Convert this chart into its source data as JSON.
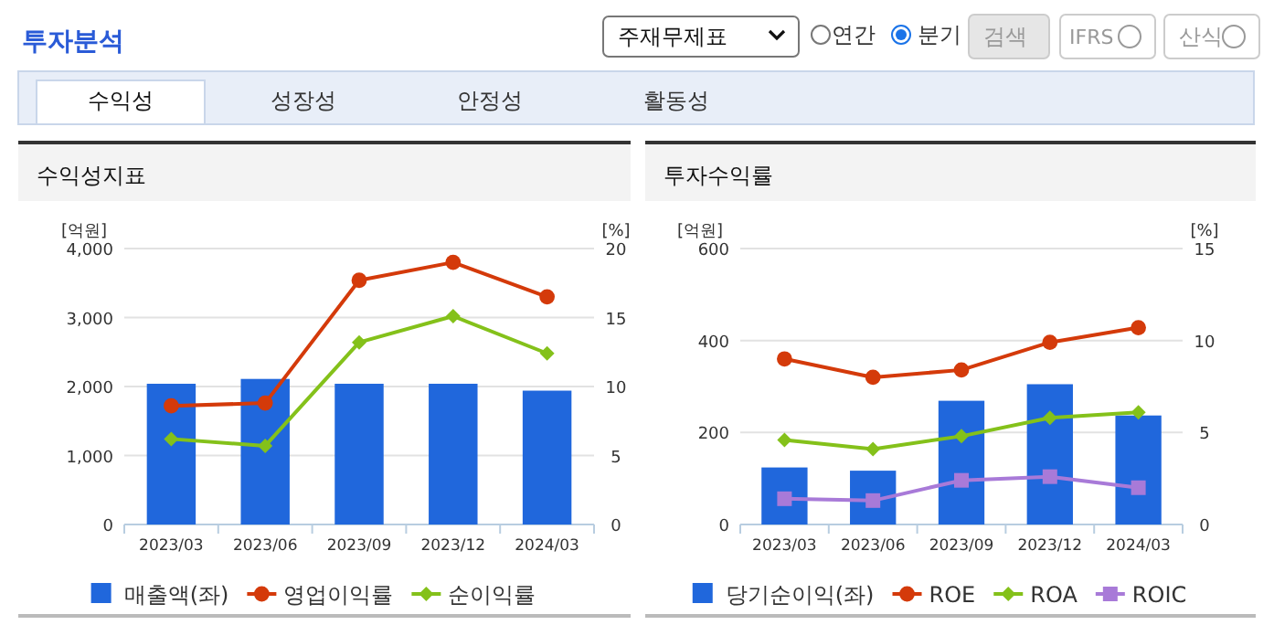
{
  "chart_data": [
    {
      "type": "other",
      "annotations": [
        "투자분석",
        "주재무제표",
        "연간",
        "분기",
        "검색",
        "IFRS",
        "산식",
        "수익성",
        "성장성",
        "안정성",
        "활동성"
      ]
    },
    {
      "type": "bar",
      "title": "수익성지표",
      "ylabel": "[억원]",
      "y2label": "[%]",
      "categories": [
        "2023/03",
        "2023/06",
        "2023/09",
        "2023/12",
        "2024/03"
      ],
      "ylim": [
        0,
        4000
      ],
      "yticks": [
        0,
        {
          "value": 1000,
          "label": "1,000"
        },
        {
          "value": 2000,
          "label": "2,000"
        },
        {
          "value": 3000,
          "label": "3,000"
        },
        {
          "value": 4000,
          "label": "4,000"
        }
      ],
      "y2lim": [
        0,
        20
      ],
      "y2ticks": [
        0,
        5,
        10,
        15,
        20
      ],
      "grid": "y",
      "legend": "bottom",
      "series": [
        {
          "name": "매출액(좌)",
          "type": "bar",
          "color": "#2067dc",
          "values": [
            2040,
            2110,
            2040,
            2040,
            1940
          ]
        },
        {
          "name": "영업이익률",
          "type": "line",
          "axis": "y2",
          "marker": "circle",
          "color": "#d43a0a",
          "values": [
            8.6,
            8.8,
            17.7,
            19.0,
            16.5
          ]
        },
        {
          "name": "순이익률",
          "type": "line",
          "axis": "y2",
          "marker": "diamond",
          "color": "#84c11a",
          "values": [
            6.2,
            5.7,
            13.2,
            15.1,
            12.4
          ]
        }
      ]
    },
    {
      "type": "bar",
      "title": "투자수익률",
      "ylabel": "[억원]",
      "y2label": "[%]",
      "categories": [
        "2023/03",
        "2023/06",
        "2023/09",
        "2023/12",
        "2024/03"
      ],
      "ylim": [
        0,
        600
      ],
      "yticks": [
        0,
        200,
        400,
        600
      ],
      "y2lim": [
        0,
        15
      ],
      "y2ticks": [
        0,
        5,
        10,
        15
      ],
      "grid": "y",
      "legend": "bottom",
      "series": [
        {
          "name": "당기순이익(좌)",
          "type": "bar",
          "color": "#2067dc",
          "values": [
            124,
            117,
            269,
            305,
            237
          ]
        },
        {
          "name": "ROE",
          "type": "line",
          "axis": "y2",
          "marker": "circle",
          "color": "#d43a0a",
          "values": [
            9.0,
            8.0,
            8.4,
            9.9,
            10.7
          ]
        },
        {
          "name": "ROA",
          "type": "line",
          "axis": "y2",
          "marker": "diamond",
          "color": "#84c11a",
          "values": [
            4.6,
            4.1,
            4.8,
            5.8,
            6.1
          ]
        },
        {
          "name": "ROIC",
          "type": "line",
          "axis": "y2",
          "marker": "square",
          "color": "#a87ad8",
          "values": [
            1.4,
            1.3,
            2.4,
            2.6,
            2.0
          ]
        }
      ]
    }
  ]
}
